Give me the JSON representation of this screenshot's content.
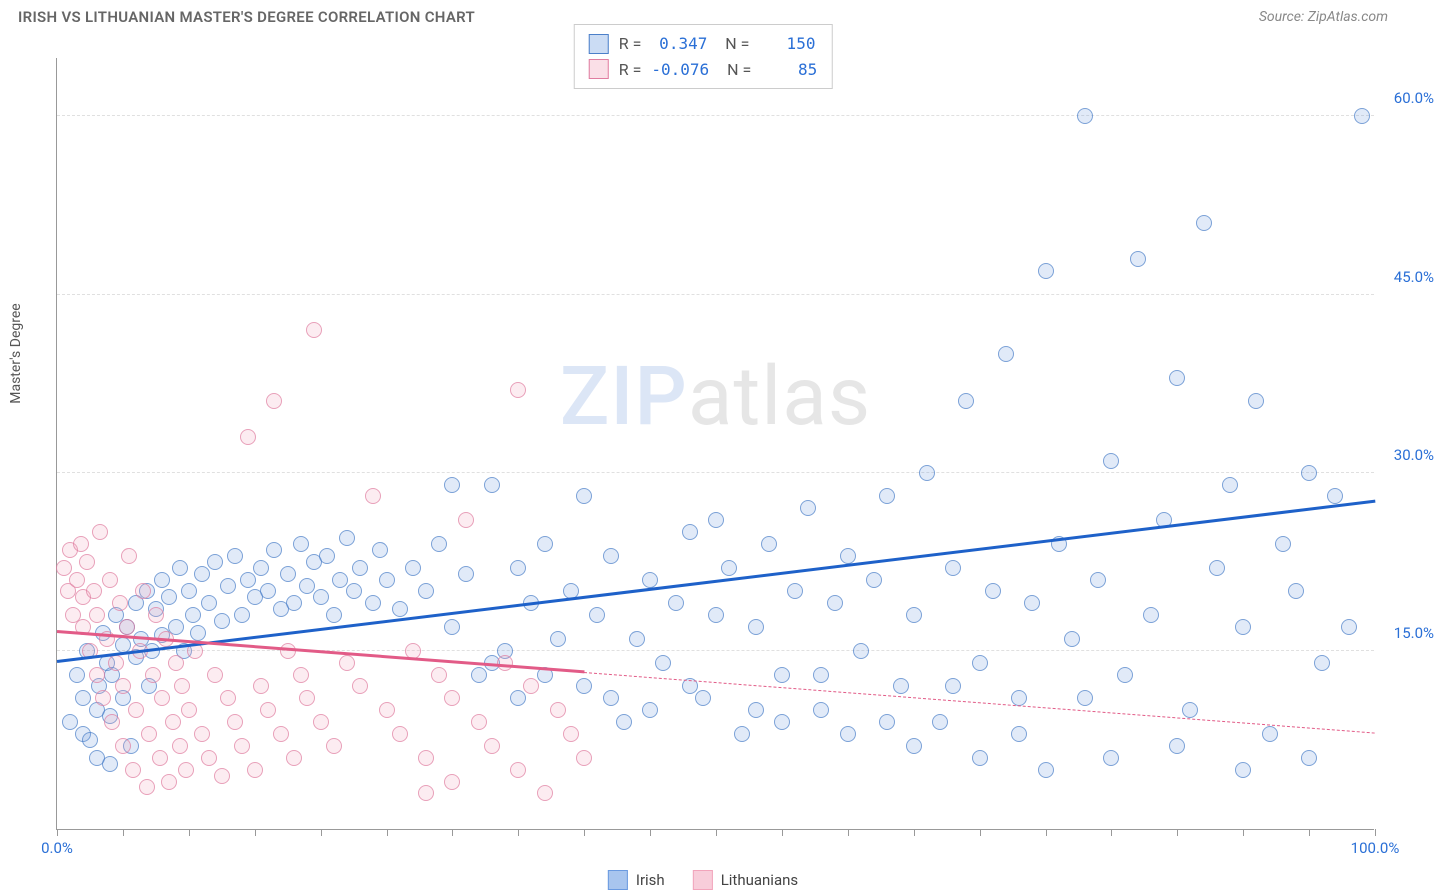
{
  "title": "IRISH VS LITHUANIAN MASTER'S DEGREE CORRELATION CHART",
  "source": "Source: ZipAtlas.com",
  "ylabel": "Master's Degree",
  "watermark": {
    "part1": "ZIP",
    "part2": "atlas"
  },
  "chart": {
    "type": "scatter",
    "background_color": "#ffffff",
    "grid_color": "#e0e0e0",
    "axis_color": "#999999",
    "xlim": [
      0,
      100
    ],
    "ylim": [
      0,
      65
    ],
    "xtick_positions": [
      0,
      5,
      10,
      15,
      20,
      25,
      30,
      35,
      40,
      45,
      50,
      55,
      60,
      65,
      70,
      75,
      80,
      85,
      90,
      95,
      100
    ],
    "xtick_labels": {
      "0": "0.0%",
      "100": "100.0%"
    },
    "xtick_label_color": "#2a6fd6",
    "yticks": [
      {
        "v": 15,
        "label": "15.0%"
      },
      {
        "v": 30,
        "label": "30.0%"
      },
      {
        "v": 45,
        "label": "45.0%"
      },
      {
        "v": 60,
        "label": "60.0%"
      }
    ],
    "ytick_label_color": "#2a6fd6",
    "marker_radius": 8,
    "marker_fill_opacity": 0.28,
    "series": [
      {
        "name": "Irish",
        "color": "#6a9ae0",
        "stroke": "#4b7fc9",
        "trend_color": "#1e61c9",
        "r": "0.347",
        "n": "150",
        "trend": {
          "x1": 0,
          "y1": 14.0,
          "x2": 100,
          "y2": 27.5,
          "solid_end_x": 100
        },
        "points": [
          [
            1,
            9
          ],
          [
            1.5,
            13
          ],
          [
            2,
            8
          ],
          [
            2,
            11
          ],
          [
            2.3,
            15
          ],
          [
            2.5,
            7.5
          ],
          [
            3,
            10
          ],
          [
            3,
            6
          ],
          [
            3.2,
            12
          ],
          [
            3.5,
            16.5
          ],
          [
            3.8,
            14
          ],
          [
            4,
            5.5
          ],
          [
            4,
            9.5
          ],
          [
            4.2,
            13
          ],
          [
            4.5,
            18
          ],
          [
            5,
            15.5
          ],
          [
            5,
            11
          ],
          [
            5.3,
            17
          ],
          [
            5.6,
            7
          ],
          [
            6,
            14.5
          ],
          [
            6,
            19
          ],
          [
            6.4,
            16
          ],
          [
            6.8,
            20
          ],
          [
            7,
            12
          ],
          [
            7.2,
            15
          ],
          [
            7.5,
            18.5
          ],
          [
            8,
            16.3
          ],
          [
            8,
            21
          ],
          [
            8.5,
            19.5
          ],
          [
            9,
            17
          ],
          [
            9.3,
            22
          ],
          [
            9.6,
            15
          ],
          [
            10,
            20
          ],
          [
            10.3,
            18
          ],
          [
            10.7,
            16.5
          ],
          [
            11,
            21.5
          ],
          [
            11.5,
            19
          ],
          [
            12,
            22.5
          ],
          [
            12.5,
            17.5
          ],
          [
            13,
            20.5
          ],
          [
            13.5,
            23
          ],
          [
            14,
            18
          ],
          [
            14.5,
            21
          ],
          [
            15,
            19.5
          ],
          [
            15.5,
            22
          ],
          [
            16,
            20
          ],
          [
            16.5,
            23.5
          ],
          [
            17,
            18.5
          ],
          [
            17.5,
            21.5
          ],
          [
            18,
            19
          ],
          [
            18.5,
            24
          ],
          [
            19,
            20.5
          ],
          [
            19.5,
            22.5
          ],
          [
            20,
            19.5
          ],
          [
            20.5,
            23
          ],
          [
            21,
            18
          ],
          [
            21.5,
            21
          ],
          [
            22,
            24.5
          ],
          [
            22.5,
            20
          ],
          [
            23,
            22
          ],
          [
            24,
            19
          ],
          [
            24.5,
            23.5
          ],
          [
            25,
            21
          ],
          [
            26,
            18.5
          ],
          [
            27,
            22
          ],
          [
            28,
            20
          ],
          [
            29,
            24
          ],
          [
            30,
            17
          ],
          [
            31,
            21.5
          ],
          [
            32,
            13
          ],
          [
            33,
            29
          ],
          [
            34,
            15
          ],
          [
            35,
            22
          ],
          [
            36,
            19
          ],
          [
            37,
            24
          ],
          [
            38,
            16
          ],
          [
            39,
            20
          ],
          [
            40,
            12
          ],
          [
            41,
            18
          ],
          [
            42,
            23
          ],
          [
            43,
            9
          ],
          [
            44,
            16
          ],
          [
            45,
            21
          ],
          [
            46,
            14
          ],
          [
            47,
            19
          ],
          [
            48,
            25
          ],
          [
            49,
            11
          ],
          [
            50,
            18
          ],
          [
            51,
            22
          ],
          [
            52,
            8
          ],
          [
            53,
            17
          ],
          [
            54,
            24
          ],
          [
            55,
            13
          ],
          [
            56,
            20
          ],
          [
            57,
            27
          ],
          [
            58,
            10
          ],
          [
            59,
            19
          ],
          [
            60,
            23
          ],
          [
            61,
            15
          ],
          [
            62,
            21
          ],
          [
            63,
            28
          ],
          [
            64,
            12
          ],
          [
            65,
            18
          ],
          [
            66,
            30
          ],
          [
            67,
            9
          ],
          [
            68,
            22
          ],
          [
            69,
            36
          ],
          [
            70,
            14
          ],
          [
            71,
            20
          ],
          [
            72,
            40
          ],
          [
            73,
            11
          ],
          [
            74,
            19
          ],
          [
            75,
            47
          ],
          [
            76,
            24
          ],
          [
            77,
            16
          ],
          [
            78,
            60
          ],
          [
            79,
            21
          ],
          [
            80,
            31
          ],
          [
            81,
            13
          ],
          [
            82,
            48
          ],
          [
            83,
            18
          ],
          [
            84,
            26
          ],
          [
            85,
            38
          ],
          [
            86,
            10
          ],
          [
            87,
            51
          ],
          [
            88,
            22
          ],
          [
            89,
            29
          ],
          [
            90,
            17
          ],
          [
            91,
            36
          ],
          [
            92,
            8
          ],
          [
            93,
            24
          ],
          [
            94,
            20
          ],
          [
            95,
            30
          ],
          [
            96,
            14
          ],
          [
            97,
            28
          ],
          [
            98,
            17
          ],
          [
            99,
            60
          ],
          [
            30,
            29
          ],
          [
            35,
            11
          ],
          [
            40,
            28
          ],
          [
            45,
            10
          ],
          [
            50,
            26
          ],
          [
            55,
            9
          ],
          [
            60,
            8
          ],
          [
            65,
            7
          ],
          [
            70,
            6
          ],
          [
            75,
            5
          ],
          [
            80,
            6
          ],
          [
            85,
            7
          ],
          [
            90,
            5
          ],
          [
            95,
            6
          ],
          [
            33,
            14
          ],
          [
            37,
            13
          ],
          [
            42,
            11
          ],
          [
            48,
            12
          ],
          [
            53,
            10
          ],
          [
            58,
            13
          ],
          [
            63,
            9
          ],
          [
            68,
            12
          ],
          [
            73,
            8
          ],
          [
            78,
            11
          ]
        ]
      },
      {
        "name": "Lithuanians",
        "color": "#f2a4bb",
        "stroke": "#e07da0",
        "trend_color": "#e25b87",
        "r": "-0.076",
        "n": "85",
        "trend": {
          "x1": 0,
          "y1": 16.5,
          "x2": 100,
          "y2": 8.0,
          "solid_end_x": 40
        },
        "points": [
          [
            0.5,
            22
          ],
          [
            0.8,
            20
          ],
          [
            1,
            23.5
          ],
          [
            1.2,
            18
          ],
          [
            1.5,
            21
          ],
          [
            1.8,
            24
          ],
          [
            2,
            17
          ],
          [
            2,
            19.5
          ],
          [
            2.3,
            22.5
          ],
          [
            2.5,
            15
          ],
          [
            2.8,
            20
          ],
          [
            3,
            13
          ],
          [
            3,
            18
          ],
          [
            3.3,
            25
          ],
          [
            3.5,
            11
          ],
          [
            3.8,
            16
          ],
          [
            4,
            21
          ],
          [
            4.2,
            9
          ],
          [
            4.5,
            14
          ],
          [
            4.8,
            19
          ],
          [
            5,
            7
          ],
          [
            5,
            12
          ],
          [
            5.3,
            17
          ],
          [
            5.5,
            23
          ],
          [
            5.8,
            5
          ],
          [
            6,
            10
          ],
          [
            6.3,
            15
          ],
          [
            6.5,
            20
          ],
          [
            6.8,
            3.5
          ],
          [
            7,
            8
          ],
          [
            7.3,
            13
          ],
          [
            7.5,
            18
          ],
          [
            7.8,
            6
          ],
          [
            8,
            11
          ],
          [
            8.3,
            16
          ],
          [
            8.5,
            4
          ],
          [
            8.8,
            9
          ],
          [
            9,
            14
          ],
          [
            9.3,
            7
          ],
          [
            9.5,
            12
          ],
          [
            9.8,
            5
          ],
          [
            10,
            10
          ],
          [
            10.5,
            15
          ],
          [
            11,
            8
          ],
          [
            11.5,
            6
          ],
          [
            12,
            13
          ],
          [
            12.5,
            4.5
          ],
          [
            13,
            11
          ],
          [
            13.5,
            9
          ],
          [
            14,
            7
          ],
          [
            14.5,
            33
          ],
          [
            15,
            5
          ],
          [
            15.5,
            12
          ],
          [
            16,
            10
          ],
          [
            16.5,
            36
          ],
          [
            17,
            8
          ],
          [
            17.5,
            15
          ],
          [
            18,
            6
          ],
          [
            18.5,
            13
          ],
          [
            19,
            11
          ],
          [
            19.5,
            42
          ],
          [
            20,
            9
          ],
          [
            21,
            7
          ],
          [
            22,
            14
          ],
          [
            23,
            12
          ],
          [
            24,
            28
          ],
          [
            25,
            10
          ],
          [
            26,
            8
          ],
          [
            27,
            15
          ],
          [
            28,
            6
          ],
          [
            29,
            13
          ],
          [
            30,
            11
          ],
          [
            31,
            26
          ],
          [
            32,
            9
          ],
          [
            33,
            7
          ],
          [
            34,
            14
          ],
          [
            35,
            5
          ],
          [
            36,
            12
          ],
          [
            37,
            3
          ],
          [
            38,
            10
          ],
          [
            39,
            8
          ],
          [
            40,
            6
          ],
          [
            35,
            37
          ],
          [
            30,
            4
          ],
          [
            28,
            3
          ]
        ]
      }
    ]
  },
  "legend_bottom": [
    {
      "label": "Irish",
      "color": "#a8c5ee",
      "stroke": "#6a9ae0"
    },
    {
      "label": "Lithuanians",
      "color": "#f8cdda",
      "stroke": "#f2a4bb"
    }
  ]
}
